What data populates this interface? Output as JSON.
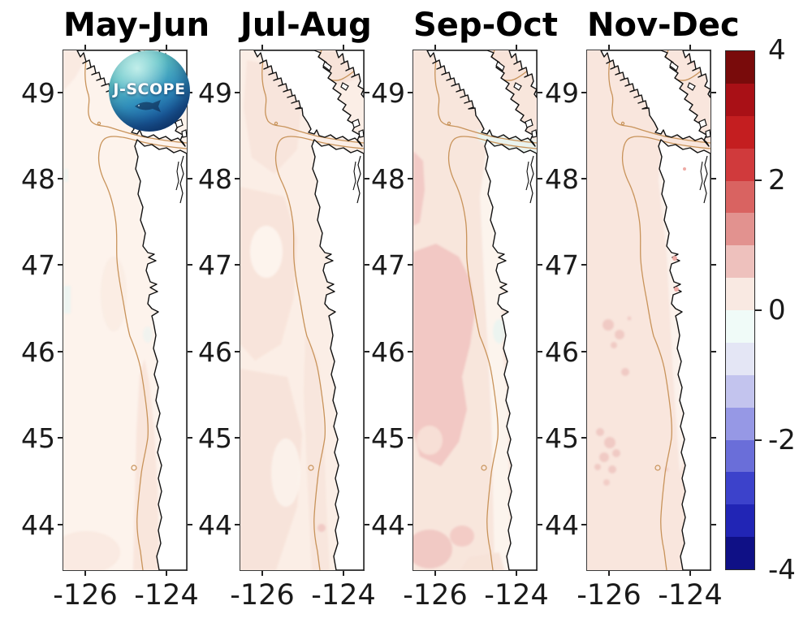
{
  "figure": {
    "panel_titles": [
      "May-Jun",
      "Jul-Aug",
      "Sep-Oct",
      "Nov-Dec"
    ]
  },
  "axes": {
    "lat_ticks": [
      "49",
      "48",
      "47",
      "46",
      "45",
      "44"
    ],
    "lon_ticks": [
      "-126",
      "-124"
    ]
  },
  "colorbar": {
    "tick_labels": [
      "4",
      "2",
      "0",
      "-2",
      "-4"
    ],
    "tick_values": [
      4,
      2,
      0,
      -2,
      -4
    ],
    "vmin": -4,
    "vmax": 4,
    "levels_top_to_bottom": [
      "#790b0b",
      "#a91016",
      "#c41e20",
      "#d03a3c",
      "#d96361",
      "#e2928f",
      "#eec1bd",
      "#f9e9e2",
      "#f0fbf8",
      "#e4e6f5",
      "#c3c4ee",
      "#9698e5",
      "#6a6ed9",
      "#3c42cb",
      "#2125b5",
      "#0f1086"
    ]
  },
  "logo": {
    "text": "J-SCOPE"
  },
  "map_colors": {
    "contour": "#c8935a",
    "coastline": "#111111",
    "land": "#ffffff",
    "anomaly_base": "#fdf3ec",
    "anomaly_light": "#f7e2d8",
    "anomaly_medium": "#f1c6c2",
    "anomaly_cool": "#e9f4f1"
  },
  "chart_data": {
    "type": "heatmap",
    "description": "Four-panel coastal ocean map of bimonthly anomaly fields (Pacific Northwest shelf, J-SCOPE model), shared diverging red-blue colorbar from -4 to 4 with 16 discrete levels; tan line marks the shelf-break contour, black lines the coastline.",
    "lon_range": [
      -126.5,
      -123.5
    ],
    "lat_range": [
      43.5,
      49.5
    ],
    "lon_ticks": [
      -126,
      -124
    ],
    "lat_ticks": [
      49,
      48,
      47,
      46,
      45,
      44
    ],
    "colorbar_ticks": [
      4,
      2,
      0,
      -2,
      -4
    ],
    "panels": [
      {
        "title": "May-Jun",
        "anomaly_pattern": "near-zero to +0.5 everywhere; faint +0.5-1 band along southern coast near 44-45N"
      },
      {
        "title": "Jul-Aug",
        "anomaly_pattern": "mostly +0.5 to +1 offshore mottling; +1 patch in Strait of Georgia; small +1 spot near coast at 44N"
      },
      {
        "title": "Sep-Oct",
        "anomaly_pattern": "large +1 to +1.5 offshore blob between 44.5-47N; slight negative (cool) water in Strait of Juan de Fuca; +1-1.5 patches at southwest corner"
      },
      {
        "title": "Nov-Dec",
        "anomaly_pattern": "uniform +0.5-1 offshore with scattered +1-1.5 speckles near 45-46.3N; small warm spots in coastal estuaries"
      }
    ]
  }
}
